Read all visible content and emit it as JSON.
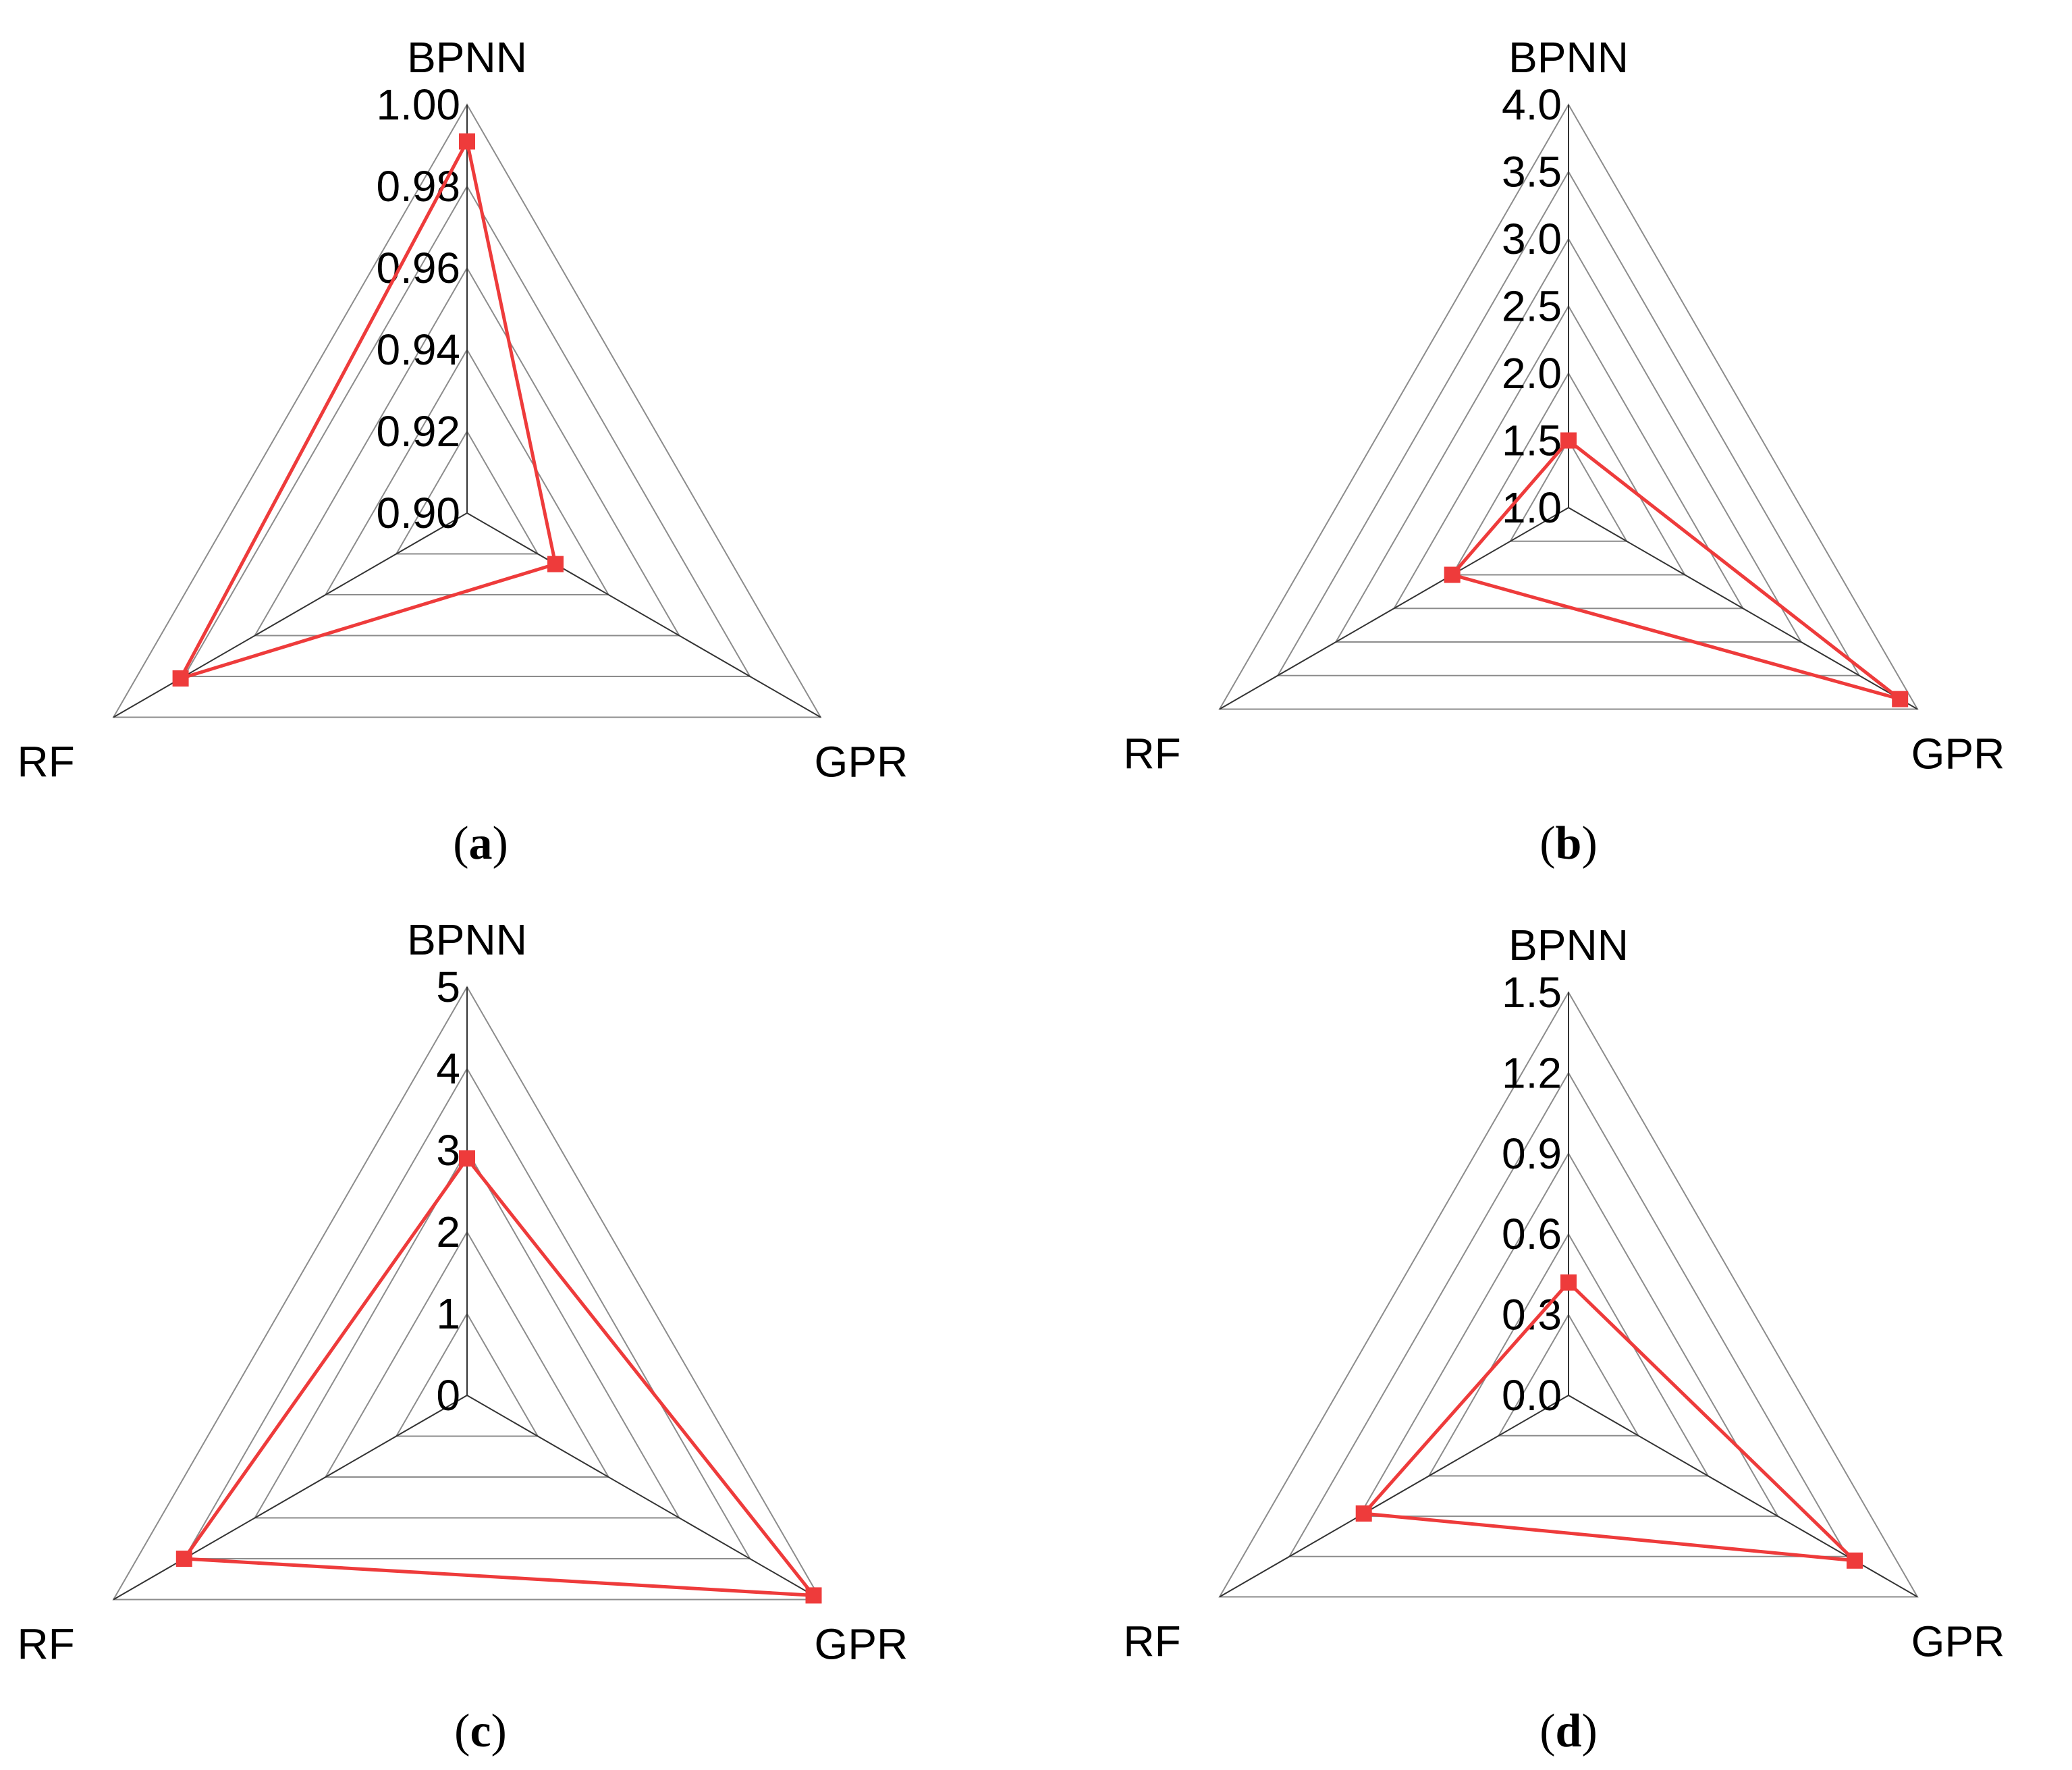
{
  "chart_data": [
    {
      "type": "radar",
      "panel": "a",
      "axes": [
        "BPNN",
        "GPR",
        "RF"
      ],
      "ticks": [
        "0.90",
        "0.92",
        "0.94",
        "0.96",
        "0.98",
        "1.00"
      ],
      "range": [
        0.9,
        1.0
      ],
      "values": [
        0.991,
        0.925,
        0.981
      ],
      "series_color": "#ee3b3b",
      "grid_colors": [
        "#888888"
      ],
      "caption": "a"
    },
    {
      "type": "radar",
      "panel": "b",
      "axes": [
        "BPNN",
        "GPR",
        "RF"
      ],
      "ticks": [
        "1.0",
        "1.5",
        "2.0",
        "2.5",
        "3.0",
        "3.5",
        "4.0"
      ],
      "range": [
        1.0,
        4.0
      ],
      "values": [
        1.5,
        3.85,
        2.0
      ],
      "series_color": "#ee3b3b",
      "grid_colors": [
        "#888888"
      ],
      "caption": "b"
    },
    {
      "type": "radar",
      "panel": "c",
      "axes": [
        "BPNN",
        "GPR",
        "RF"
      ],
      "ticks": [
        "0",
        "1",
        "2",
        "3",
        "4",
        "5"
      ],
      "range": [
        0,
        5
      ],
      "values": [
        2.9,
        4.9,
        4.0
      ],
      "series_color": "#ee3b3b",
      "grid_colors": [
        "#888888"
      ],
      "caption": "c"
    },
    {
      "type": "radar",
      "panel": "d",
      "axes": [
        "BPNN",
        "GPR",
        "RF"
      ],
      "ticks": [
        "0.0",
        "0.3",
        "0.6",
        "0.9",
        "1.2",
        "1.5"
      ],
      "range": [
        0.0,
        1.5
      ],
      "values": [
        0.42,
        1.23,
        0.88
      ],
      "series_color": "#ee3b3b",
      "grid_colors": [
        "#888888"
      ],
      "caption": "d"
    }
  ]
}
